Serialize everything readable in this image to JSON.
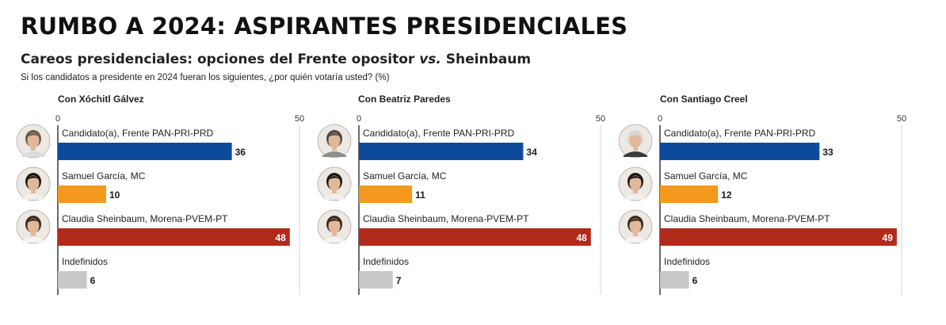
{
  "header": {
    "title": "RUMBO A 2024: ASPIRANTES PRESIDENCIALES",
    "subtitle_prefix": "Careos presidenciales: opciones del Frente opositor ",
    "subtitle_vs": "vs.",
    "subtitle_suffix": " Sheinbaum",
    "question": "Si los candidatos a presidente en 2024 fueran los siguientes, ¿por quién votaría usted? (%)"
  },
  "colors": {
    "frente": "#0e4a9c",
    "mc": "#f39a1e",
    "morena": "#b22a1a",
    "indefinidos": "#c8c8c8"
  },
  "chart_data": [
    {
      "type": "bar",
      "title": "Con Xóchitl Gálvez",
      "categories": [
        "Candidato(a), Frente PAN-PRI-PRD",
        "Samuel García, MC",
        "Claudia Sheinbaum, Morena-PVEM-PT",
        "Indefinidos"
      ],
      "values": [
        36,
        10,
        48,
        6
      ],
      "xlim": [
        0,
        50
      ],
      "ticks": [
        0,
        50
      ],
      "colors": [
        "#0e4a9c",
        "#f39a1e",
        "#b22a1a",
        "#c8c8c8"
      ],
      "avatars": [
        "xochitl-galvez-photo",
        "samuel-garcia-photo",
        "claudia-sheinbaum-photo",
        null
      ]
    },
    {
      "type": "bar",
      "title": "Con Beatriz Paredes",
      "categories": [
        "Candidato(a), Frente PAN-PRI-PRD",
        "Samuel García, MC",
        "Claudia Sheinbaum, Morena-PVEM-PT",
        "Indefinidos"
      ],
      "values": [
        34,
        11,
        48,
        7
      ],
      "xlim": [
        0,
        50
      ],
      "ticks": [
        0,
        50
      ],
      "colors": [
        "#0e4a9c",
        "#f39a1e",
        "#b22a1a",
        "#c8c8c8"
      ],
      "avatars": [
        "beatriz-paredes-photo",
        "samuel-garcia-photo",
        "claudia-sheinbaum-photo",
        null
      ]
    },
    {
      "type": "bar",
      "title": "Con Santiago Creel",
      "categories": [
        "Candidato(a), Frente PAN-PRI-PRD",
        "Samuel García, MC",
        "Claudia Sheinbaum, Morena-PVEM-PT",
        "Indefinidos"
      ],
      "values": [
        33,
        12,
        49,
        6
      ],
      "xlim": [
        0,
        50
      ],
      "ticks": [
        0,
        50
      ],
      "colors": [
        "#0e4a9c",
        "#f39a1e",
        "#b22a1a",
        "#c8c8c8"
      ],
      "avatars": [
        "santiago-creel-photo",
        "samuel-garcia-photo",
        "claudia-sheinbaum-photo",
        null
      ]
    }
  ]
}
